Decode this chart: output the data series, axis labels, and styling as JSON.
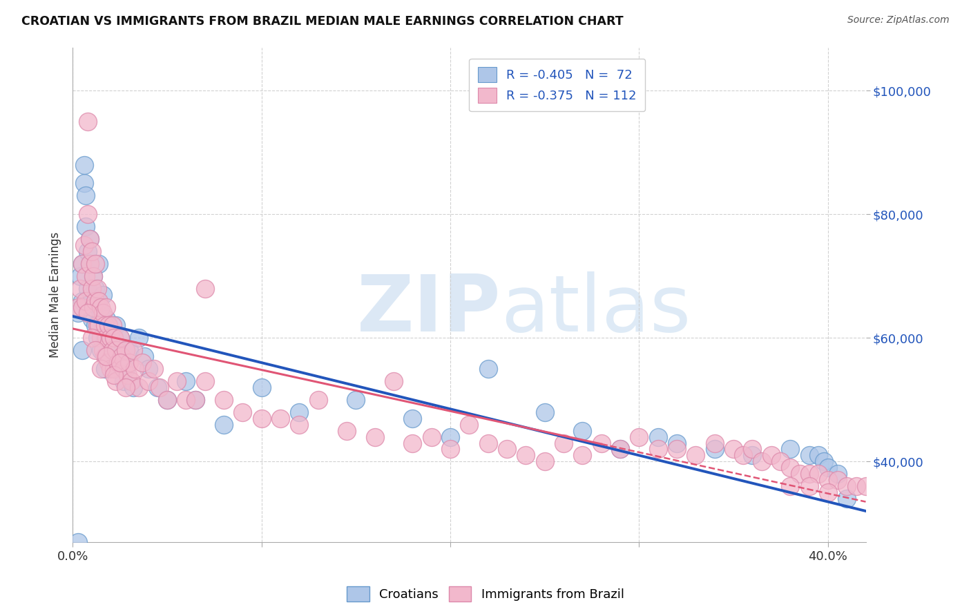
{
  "title": "CROATIAN VS IMMIGRANTS FROM BRAZIL MEDIAN MALE EARNINGS CORRELATION CHART",
  "source": "Source: ZipAtlas.com",
  "ylabel": "Median Male Earnings",
  "yticks": [
    40000,
    60000,
    80000,
    100000
  ],
  "ytick_labels": [
    "$40,000",
    "$60,000",
    "$80,000",
    "$100,000"
  ],
  "xlim": [
    0.0,
    0.42
  ],
  "ylim": [
    27000,
    107000
  ],
  "legend_r_blue": "R = -0.405",
  "legend_n_blue": "N =  72",
  "legend_r_pink": "R = -0.375",
  "legend_n_pink": "N = 112",
  "color_blue": "#aec6e8",
  "color_pink": "#f2b8cc",
  "line_color_blue": "#2255bb",
  "line_color_pink": "#e05575",
  "watermark_zip": "ZIP",
  "watermark_atlas": "atlas",
  "watermark_color": "#dce8f5",
  "trend_blue_x0": 0.0,
  "trend_blue_y0": 63500,
  "trend_blue_x1": 0.42,
  "trend_blue_y1": 32000,
  "trend_pink_x0": 0.0,
  "trend_pink_y0": 61500,
  "trend_pink_x1": 0.42,
  "trend_pink_y1": 33500,
  "trend_pink_dash_x0": 0.28,
  "trend_pink_dash_x1": 0.42,
  "background_color": "#ffffff",
  "blue_pts": [
    [
      0.003,
      64000
    ],
    [
      0.004,
      70000
    ],
    [
      0.005,
      66000
    ],
    [
      0.005,
      72000
    ],
    [
      0.006,
      85000
    ],
    [
      0.006,
      88000
    ],
    [
      0.007,
      78000
    ],
    [
      0.007,
      83000
    ],
    [
      0.008,
      74000
    ],
    [
      0.008,
      68000
    ],
    [
      0.009,
      76000
    ],
    [
      0.009,
      72000
    ],
    [
      0.01,
      67000
    ],
    [
      0.01,
      63000
    ],
    [
      0.011,
      70000
    ],
    [
      0.011,
      65000
    ],
    [
      0.012,
      68000
    ],
    [
      0.012,
      62000
    ],
    [
      0.013,
      66000
    ],
    [
      0.013,
      60000
    ],
    [
      0.014,
      65000
    ],
    [
      0.014,
      72000
    ],
    [
      0.015,
      64000
    ],
    [
      0.015,
      58000
    ],
    [
      0.016,
      67000
    ],
    [
      0.016,
      62000
    ],
    [
      0.017,
      60000
    ],
    [
      0.017,
      55000
    ],
    [
      0.018,
      63000
    ],
    [
      0.018,
      57000
    ],
    [
      0.019,
      61000
    ],
    [
      0.02,
      60000
    ],
    [
      0.021,
      58000
    ],
    [
      0.022,
      55000
    ],
    [
      0.023,
      62000
    ],
    [
      0.024,
      57000
    ],
    [
      0.025,
      60000
    ],
    [
      0.026,
      56000
    ],
    [
      0.027,
      53000
    ],
    [
      0.028,
      55000
    ],
    [
      0.03,
      58000
    ],
    [
      0.032,
      52000
    ],
    [
      0.035,
      60000
    ],
    [
      0.038,
      57000
    ],
    [
      0.04,
      55000
    ],
    [
      0.045,
      52000
    ],
    [
      0.05,
      50000
    ],
    [
      0.06,
      53000
    ],
    [
      0.065,
      50000
    ],
    [
      0.08,
      46000
    ],
    [
      0.1,
      52000
    ],
    [
      0.12,
      48000
    ],
    [
      0.15,
      50000
    ],
    [
      0.18,
      47000
    ],
    [
      0.2,
      44000
    ],
    [
      0.22,
      55000
    ],
    [
      0.25,
      48000
    ],
    [
      0.27,
      45000
    ],
    [
      0.29,
      42000
    ],
    [
      0.31,
      44000
    ],
    [
      0.32,
      43000
    ],
    [
      0.34,
      42000
    ],
    [
      0.36,
      41000
    ],
    [
      0.38,
      42000
    ],
    [
      0.39,
      41000
    ],
    [
      0.395,
      41000
    ],
    [
      0.398,
      40000
    ],
    [
      0.4,
      39000
    ],
    [
      0.405,
      38000
    ],
    [
      0.41,
      34000
    ],
    [
      0.005,
      58000
    ],
    [
      0.003,
      27000
    ]
  ],
  "pink_pts": [
    [
      0.003,
      65000
    ],
    [
      0.004,
      68000
    ],
    [
      0.005,
      72000
    ],
    [
      0.005,
      65000
    ],
    [
      0.006,
      75000
    ],
    [
      0.007,
      70000
    ],
    [
      0.007,
      66000
    ],
    [
      0.008,
      95000
    ],
    [
      0.008,
      80000
    ],
    [
      0.009,
      76000
    ],
    [
      0.009,
      72000
    ],
    [
      0.01,
      68000
    ],
    [
      0.01,
      74000
    ],
    [
      0.011,
      70000
    ],
    [
      0.011,
      65000
    ],
    [
      0.012,
      72000
    ],
    [
      0.012,
      66000
    ],
    [
      0.013,
      68000
    ],
    [
      0.013,
      62000
    ],
    [
      0.014,
      66000
    ],
    [
      0.014,
      62000
    ],
    [
      0.015,
      65000
    ],
    [
      0.015,
      60000
    ],
    [
      0.016,
      64000
    ],
    [
      0.016,
      58000
    ],
    [
      0.017,
      62000
    ],
    [
      0.017,
      57000
    ],
    [
      0.018,
      65000
    ],
    [
      0.018,
      60000
    ],
    [
      0.019,
      62000
    ],
    [
      0.019,
      56000
    ],
    [
      0.02,
      60000
    ],
    [
      0.02,
      55000
    ],
    [
      0.021,
      62000
    ],
    [
      0.021,
      58000
    ],
    [
      0.022,
      60000
    ],
    [
      0.022,
      55000
    ],
    [
      0.023,
      58000
    ],
    [
      0.023,
      53000
    ],
    [
      0.024,
      56000
    ],
    [
      0.025,
      60000
    ],
    [
      0.026,
      57000
    ],
    [
      0.027,
      55000
    ],
    [
      0.028,
      58000
    ],
    [
      0.029,
      54000
    ],
    [
      0.03,
      56000
    ],
    [
      0.031,
      53000
    ],
    [
      0.032,
      58000
    ],
    [
      0.033,
      55000
    ],
    [
      0.035,
      52000
    ],
    [
      0.037,
      56000
    ],
    [
      0.04,
      53000
    ],
    [
      0.043,
      55000
    ],
    [
      0.046,
      52000
    ],
    [
      0.05,
      50000
    ],
    [
      0.055,
      53000
    ],
    [
      0.06,
      50000
    ],
    [
      0.065,
      50000
    ],
    [
      0.07,
      53000
    ],
    [
      0.08,
      50000
    ],
    [
      0.09,
      48000
    ],
    [
      0.1,
      47000
    ],
    [
      0.11,
      47000
    ],
    [
      0.12,
      46000
    ],
    [
      0.13,
      50000
    ],
    [
      0.145,
      45000
    ],
    [
      0.16,
      44000
    ],
    [
      0.17,
      53000
    ],
    [
      0.18,
      43000
    ],
    [
      0.19,
      44000
    ],
    [
      0.2,
      42000
    ],
    [
      0.21,
      46000
    ],
    [
      0.22,
      43000
    ],
    [
      0.23,
      42000
    ],
    [
      0.24,
      41000
    ],
    [
      0.25,
      40000
    ],
    [
      0.26,
      43000
    ],
    [
      0.27,
      41000
    ],
    [
      0.28,
      43000
    ],
    [
      0.29,
      42000
    ],
    [
      0.3,
      44000
    ],
    [
      0.31,
      42000
    ],
    [
      0.32,
      42000
    ],
    [
      0.33,
      41000
    ],
    [
      0.34,
      43000
    ],
    [
      0.35,
      42000
    ],
    [
      0.355,
      41000
    ],
    [
      0.36,
      42000
    ],
    [
      0.365,
      40000
    ],
    [
      0.37,
      41000
    ],
    [
      0.375,
      40000
    ],
    [
      0.38,
      39000
    ],
    [
      0.385,
      38000
    ],
    [
      0.39,
      38000
    ],
    [
      0.395,
      38000
    ],
    [
      0.4,
      37000
    ],
    [
      0.405,
      37000
    ],
    [
      0.41,
      36000
    ],
    [
      0.415,
      36000
    ],
    [
      0.42,
      36000
    ],
    [
      0.008,
      64000
    ],
    [
      0.01,
      60000
    ],
    [
      0.012,
      58000
    ],
    [
      0.015,
      55000
    ],
    [
      0.018,
      57000
    ],
    [
      0.022,
      54000
    ],
    [
      0.025,
      56000
    ],
    [
      0.028,
      52000
    ],
    [
      0.07,
      68000
    ],
    [
      0.38,
      36000
    ],
    [
      0.39,
      36000
    ],
    [
      0.4,
      35000
    ]
  ]
}
